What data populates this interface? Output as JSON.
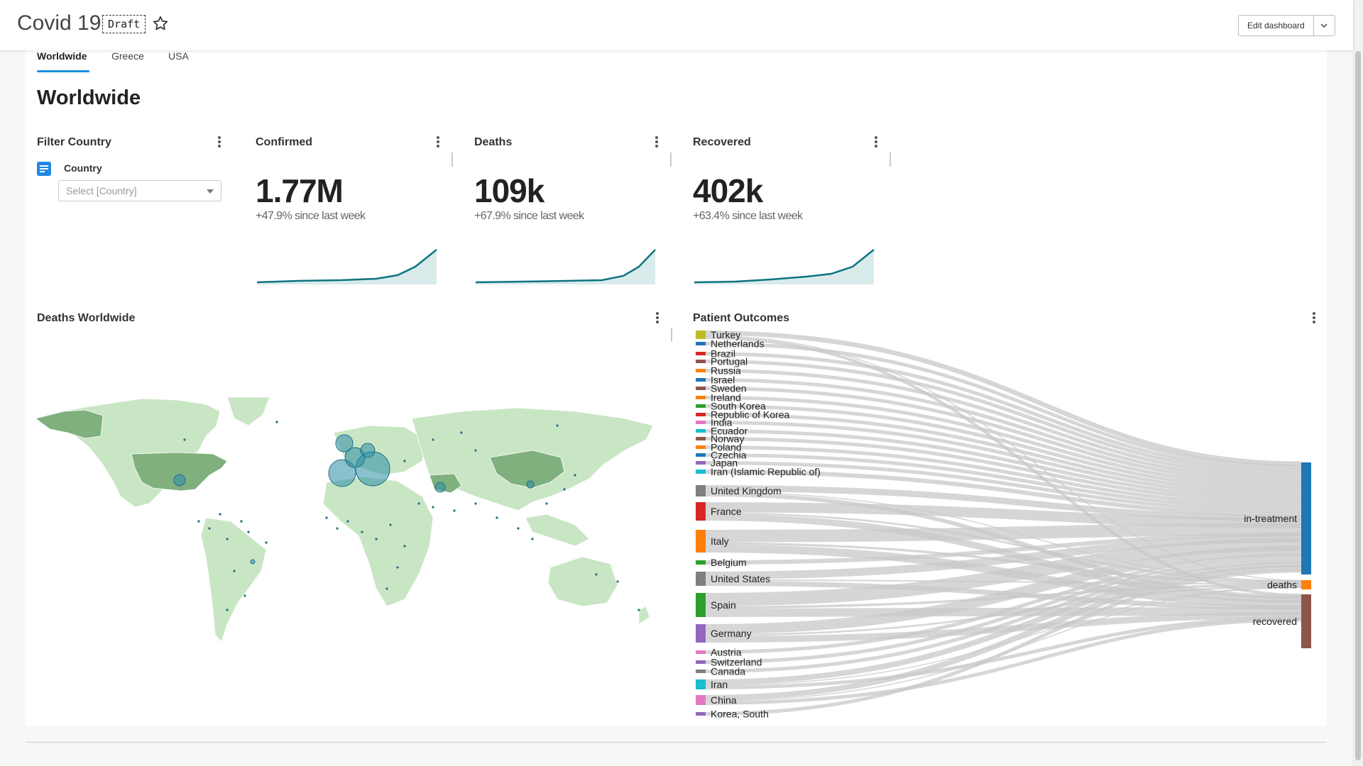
{
  "header": {
    "title": "Covid 19",
    "badge": "Draft",
    "edit_label": "Edit dashboard"
  },
  "tabs": [
    {
      "label": "Worldwide",
      "active": true
    },
    {
      "label": "Greece",
      "active": false
    },
    {
      "label": "USA",
      "active": false
    }
  ],
  "page_title": "Worldwide",
  "filter": {
    "title": "Filter Country",
    "label": "Country",
    "placeholder": "Select [Country]"
  },
  "kpis": [
    {
      "title": "Confirmed",
      "value": "1.77M",
      "change": "+47.9% since last week"
    },
    {
      "title": "Deaths",
      "value": "109k",
      "change": "+67.9% since last week"
    },
    {
      "title": "Recovered",
      "value": "402k",
      "change": "+63.4% since last week"
    }
  ],
  "map_card": {
    "title": "Deaths Worldwide"
  },
  "sankey_card": {
    "title": "Patient Outcomes"
  },
  "colors": {
    "accent": "#1a8fdb",
    "spark": "#0e7480",
    "map_land": "#c9e6c4",
    "map_dark": "#7fb07e",
    "bubble": "#2b8ca8",
    "link": "#c8c8c8"
  },
  "chart_data": {
    "type": "sankey",
    "sources": [
      {
        "name": "Turkey",
        "color": "#bcbd22"
      },
      {
        "name": "Netherlands",
        "color": "#1f77b4"
      },
      {
        "name": "Brazil",
        "color": "#d62728"
      },
      {
        "name": "Portugal",
        "color": "#8c564b"
      },
      {
        "name": "Russia",
        "color": "#ff7f0e"
      },
      {
        "name": "Israel",
        "color": "#1f77b4"
      },
      {
        "name": "Sweden",
        "color": "#8c564b"
      },
      {
        "name": "Ireland",
        "color": "#ff7f0e"
      },
      {
        "name": "South Korea",
        "color": "#2ca02c"
      },
      {
        "name": "Republic of Korea",
        "color": "#d62728"
      },
      {
        "name": "India",
        "color": "#e377c2"
      },
      {
        "name": "Ecuador",
        "color": "#17becf"
      },
      {
        "name": "Norway",
        "color": "#8c564b"
      },
      {
        "name": "Poland",
        "color": "#ff7f0e"
      },
      {
        "name": "Czechia",
        "color": "#1f77b4"
      },
      {
        "name": "Japan",
        "color": "#9467bd"
      },
      {
        "name": "Iran (Islamic Republic of)",
        "color": "#17becf"
      },
      {
        "name": "United Kingdom",
        "color": "#7f7f7f"
      },
      {
        "name": "France",
        "color": "#d62728"
      },
      {
        "name": "Italy",
        "color": "#ff7f0e"
      },
      {
        "name": "Belgium",
        "color": "#2ca02c"
      },
      {
        "name": "United States",
        "color": "#7f7f7f"
      },
      {
        "name": "Spain",
        "color": "#2ca02c"
      },
      {
        "name": "Germany",
        "color": "#9467bd"
      },
      {
        "name": "Austria",
        "color": "#e377c2"
      },
      {
        "name": "Switzerland",
        "color": "#9467bd"
      },
      {
        "name": "Canada",
        "color": "#7f7f7f"
      },
      {
        "name": "Iran",
        "color": "#17becf"
      },
      {
        "name": "China",
        "color": "#e377c2"
      },
      {
        "name": "Korea, South",
        "color": "#9467bd"
      }
    ],
    "targets": [
      {
        "name": "in-treatment",
        "color": "#1f77b4"
      },
      {
        "name": "deaths",
        "color": "#ff7f0e"
      },
      {
        "name": "recovered",
        "color": "#8c564b"
      }
    ]
  }
}
